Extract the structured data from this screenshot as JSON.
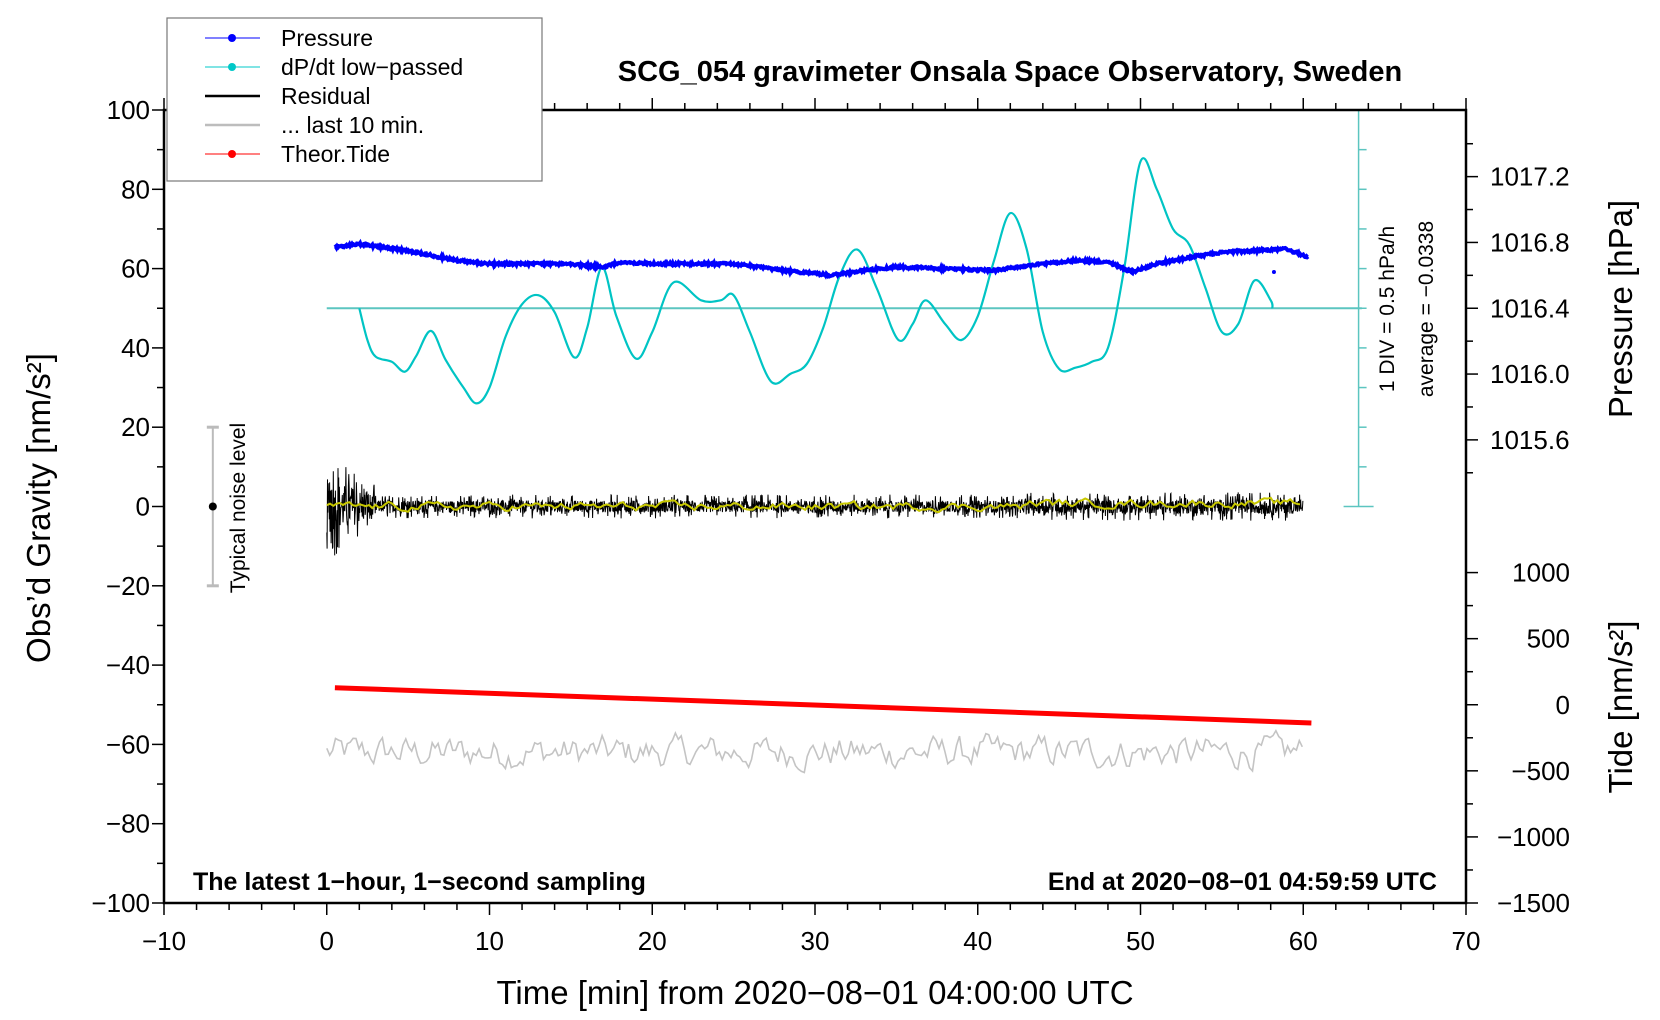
{
  "chart_data": {
    "type": "line",
    "title": "SCG_054 gravimeter Onsala Space Observatory, Sweden",
    "xlabel": "Time [min] from 2020−08−01 04:00:00 UTC",
    "ylabel_left": "Obs’d Gravity [nm/s²]",
    "ylabel_right_pressure": "Pressure [hPa]",
    "ylabel_right_tide": "Tide [nm/s²]",
    "xlim": [
      -10,
      70
    ],
    "ylim_left": [
      -100,
      100
    ],
    "x_ticks": [
      "−10",
      "0",
      "10",
      "20",
      "30",
      "40",
      "50",
      "60",
      "70"
    ],
    "x_tick_values": [
      -10,
      0,
      10,
      20,
      30,
      40,
      50,
      60,
      70
    ],
    "y_ticks_left": [
      "100",
      "80",
      "60",
      "40",
      "20",
      "0",
      "−20",
      "−40",
      "−60",
      "−80",
      "−100"
    ],
    "y_tick_values_left": [
      100,
      80,
      60,
      40,
      20,
      0,
      -20,
      -40,
      -60,
      -80,
      -100
    ],
    "pressure_ticks": [
      "1017.2",
      "1016.8",
      "1016.4",
      "1016.0",
      "1015.6"
    ],
    "pressure_tick_values": [
      1017.2,
      1016.8,
      1016.4,
      1016.0,
      1015.6
    ],
    "tide_ticks": [
      "1000",
      "500",
      "0",
      "−500",
      "−1000",
      "−1500"
    ],
    "tide_tick_values": [
      1000,
      500,
      0,
      -500,
      -1000,
      -1500
    ],
    "legend": {
      "placement": "top-left",
      "entries": [
        {
          "label": "Pressure",
          "color": "#0000ff",
          "marker": true
        },
        {
          "label": "dP/dt low−passed",
          "color": "#00c8c8",
          "marker": true
        },
        {
          "label": "Residual",
          "color": "#000000",
          "marker": false
        },
        {
          "label": "... last 10 min.",
          "color": "#bdbdbd",
          "marker": false
        },
        {
          "label": "Theor.Tide",
          "color": "#ff0000",
          "marker": true
        }
      ]
    },
    "annotations": {
      "left_bottom": "The latest 1−hour, 1−second sampling",
      "right_bottom": "End at 2020−08−01 04:59:59 UTC",
      "div_scale": "1 DIV = 0.5 hPa/h",
      "average": "average = −0.0338",
      "noise": "Typical noise level"
    },
    "noise_bar": {
      "x": -7,
      "range": [
        -20,
        20
      ]
    },
    "pressure": {
      "unit": "hPa",
      "t": [
        0.5,
        2,
        5,
        8,
        10,
        15,
        17,
        18,
        20,
        22,
        25,
        28,
        31,
        33,
        35,
        38,
        41,
        44,
        46,
        48,
        49.5,
        51,
        53,
        55,
        57,
        59,
        60.3
      ],
      "values": [
        1016.77,
        1016.79,
        1016.75,
        1016.69,
        1016.67,
        1016.67,
        1016.65,
        1016.68,
        1016.67,
        1016.67,
        1016.67,
        1016.63,
        1016.6,
        1016.63,
        1016.65,
        1016.64,
        1016.63,
        1016.67,
        1016.69,
        1016.68,
        1016.62,
        1016.67,
        1016.71,
        1016.74,
        1016.75,
        1016.76,
        1016.71
      ]
    },
    "dpdt": {
      "unit": "hPa/h",
      "t": [
        2,
        2.5,
        3,
        4,
        4.8,
        5.5,
        6.4,
        7.3,
        8.4,
        9.2,
        10,
        11,
        12,
        13,
        14,
        15.2,
        16,
        16.9,
        17.8,
        19,
        20,
        21.3,
        23,
        24.2,
        25,
        26,
        27.3,
        28.5,
        29.5,
        30.5,
        31.5,
        32.6,
        33.8,
        35.1,
        36,
        36.8,
        38,
        39,
        40,
        41,
        42,
        43,
        44,
        45,
        46,
        47,
        48,
        49,
        50,
        51,
        52,
        53,
        54,
        55,
        56,
        57,
        58,
        58.1
      ],
      "values": [
        0,
        -0.4,
        -0.61,
        -0.675,
        -0.8,
        -0.6,
        -0.285,
        -0.65,
        -1.0,
        -1.2,
        -1.0,
        -0.35,
        0.05,
        0.165,
        -0.05,
        -0.62,
        -0.25,
        0.515,
        -0.1,
        -0.635,
        -0.3,
        0.325,
        0.1,
        0.1,
        0.165,
        -0.3,
        -0.925,
        -0.825,
        -0.7,
        -0.25,
        0.4,
        0.74,
        0.25,
        -0.395,
        -0.2,
        0.1,
        -0.2,
        -0.4,
        -0.1,
        0.6,
        1.2,
        0.75,
        -0.3,
        -0.765,
        -0.75,
        -0.675,
        -0.5,
        0.5,
        1.85,
        1.5,
        1.0,
        0.8,
        0.25,
        -0.3,
        -0.2,
        0.35,
        0.1,
        0
      ]
    },
    "tide": {
      "unit": "nm/s²",
      "t": [
        0.5,
        60.5
      ],
      "values": [
        129,
        -138
      ]
    },
    "residual": {
      "t_range": [
        0,
        60
      ],
      "mean": 0,
      "typical_amplitude": 3,
      "early_amplitude": 11
    },
    "last_10_min": {
      "t_range": [
        0,
        60
      ],
      "offset": -62,
      "typical_amplitude": 3
    }
  }
}
